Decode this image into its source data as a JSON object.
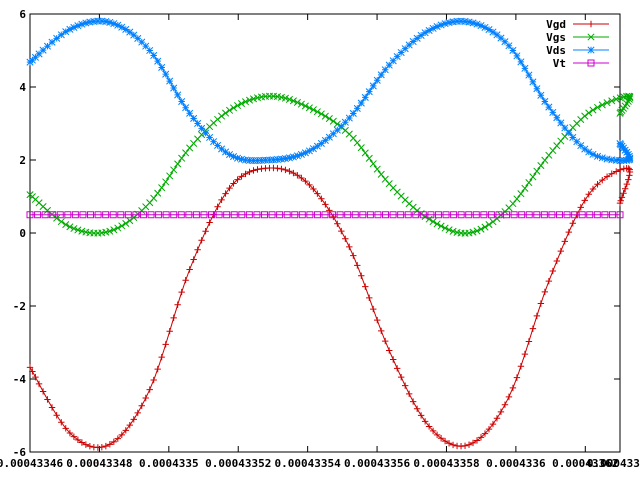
{
  "chart_data": {
    "type": "line",
    "title": "",
    "xlabel": "",
    "ylabel": "",
    "xlim": [
      0.00043346,
      0.00043363
    ],
    "ylim": [
      -6,
      6
    ],
    "grid": false,
    "legend_placement": "top-right",
    "x_ticks": [
      "0.00043346",
      "0.00043348",
      "0.0004335",
      "0.00043352",
      "0.00043354",
      "0.00043356",
      "0.00043358",
      "0.0004336",
      "0.00043362",
      "0.00043363"
    ],
    "y_ticks": [
      "6",
      "4",
      "2",
      "0",
      "-2",
      "-4",
      "-6"
    ],
    "series": [
      {
        "name": "Vgd",
        "color": "#cc0000",
        "marker": "plus",
        "x": [
          0.00043346,
          0.0004334715,
          0.000433483,
          0.0004334945,
          0.000433506,
          0.0004335175,
          0.000433529,
          0.0004335405,
          0.000433552,
          0.0004335635,
          0.000433575,
          0.0004335865,
          0.000433598,
          0.0004336095,
          0.000433621,
          0.0004336325,
          0.00043363
        ],
        "values": [
          -3.68,
          -5.48,
          -5.79,
          -4.29,
          -1.0,
          1.23,
          1.78,
          1.32,
          -0.38,
          -3.22,
          -5.3,
          -5.8,
          -4.49,
          -1.32,
          1.06,
          1.77,
          0.82
        ]
      },
      {
        "name": "Vgs",
        "color": "#00aa00",
        "marker": "cross",
        "x": [
          0.00043346,
          0.0004334715,
          0.000433483,
          0.0004334945,
          0.000433506,
          0.0004335175,
          0.000433529,
          0.0004335405,
          0.000433552,
          0.0004335635,
          0.000433575,
          0.0004335865,
          0.000433598,
          0.0004336095,
          0.000433621,
          0.0004336325,
          0.00043363
        ],
        "values": [
          1.05,
          0.17,
          0.05,
          0.83,
          2.33,
          3.36,
          3.75,
          3.43,
          2.71,
          1.35,
          0.38,
          0.0,
          0.69,
          2.13,
          3.29,
          3.75,
          3.28
        ]
      },
      {
        "name": "Vds",
        "color": "#0080ff",
        "marker": "star",
        "x": [
          0.00043346,
          0.0004334715,
          0.000433483,
          0.0004334945,
          0.000433506,
          0.0004335175,
          0.000433529,
          0.0004335405,
          0.000433552,
          0.0004335635,
          0.000433575,
          0.0004335865,
          0.000433598,
          0.0004336095,
          0.000433621,
          0.0004336325,
          0.00043363
        ],
        "values": [
          4.68,
          5.58,
          5.77,
          5.0,
          3.28,
          2.15,
          2.0,
          2.25,
          3.15,
          4.6,
          5.55,
          5.78,
          5.13,
          3.45,
          2.22,
          2.0,
          2.45
        ]
      },
      {
        "name": "Vt",
        "color": "#cc00cc",
        "marker": "square",
        "x": [
          0.00043346,
          0.00043363
        ],
        "values": [
          0.5,
          0.5
        ]
      }
    ]
  }
}
